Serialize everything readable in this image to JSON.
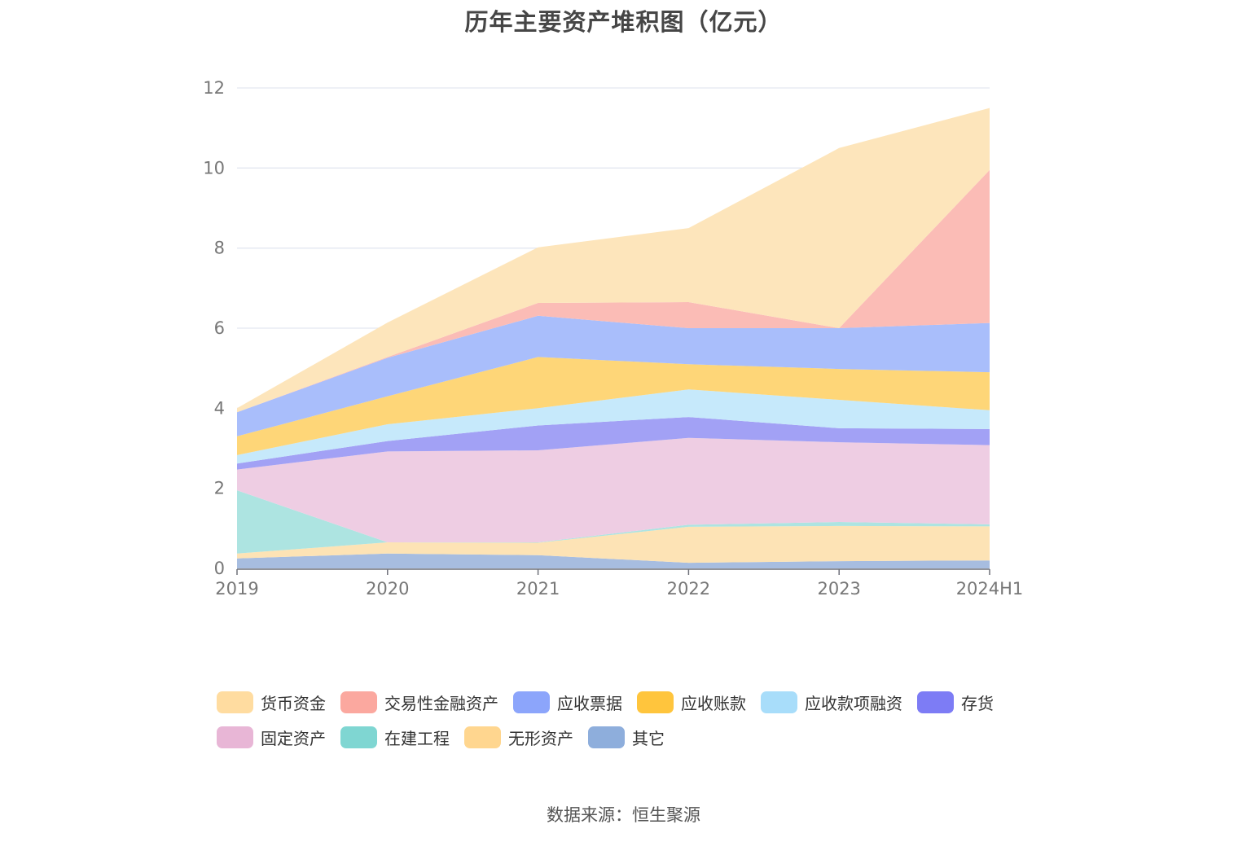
{
  "chart_data": {
    "type": "area",
    "stacked": true,
    "title": "历年主要资产堆积图（亿元）",
    "x": [
      "2019",
      "2020",
      "2021",
      "2022",
      "2023",
      "2024H1"
    ],
    "ylim": [
      0,
      12
    ],
    "yticks": [
      0,
      2,
      4,
      6,
      8,
      10,
      12
    ],
    "grid": true,
    "legend_position": "bottom",
    "series": [
      {
        "name": "其它",
        "color": "#8eaedc",
        "fill": "#a7bde0",
        "values": [
          0.25,
          0.37,
          0.33,
          0.14,
          0.18,
          0.2
        ]
      },
      {
        "name": "无形资产",
        "color": "#ffd68f",
        "fill": "#fde3b5",
        "values": [
          0.12,
          0.28,
          0.31,
          0.9,
          0.88,
          0.85
        ]
      },
      {
        "name": "在建工程",
        "color": "#7fd6d2",
        "fill": "#ade4e1",
        "values": [
          1.58,
          0.0,
          0.01,
          0.05,
          0.1,
          0.05
        ]
      },
      {
        "name": "固定资产",
        "color": "#e8b6d6",
        "fill": "#eecde3",
        "values": [
          0.52,
          2.27,
          2.3,
          2.17,
          1.99,
          1.98
        ]
      },
      {
        "name": "存货",
        "color": "#7d7cf5",
        "fill": "#a2a1f5",
        "values": [
          0.15,
          0.26,
          0.62,
          0.52,
          0.35,
          0.4
        ]
      },
      {
        "name": "应收款项融资",
        "color": "#a8ddfa",
        "fill": "#c6e9fb",
        "values": [
          0.21,
          0.42,
          0.43,
          0.69,
          0.71,
          0.47
        ]
      },
      {
        "name": "应收账款",
        "color": "#ffc53d",
        "fill": "#fed678",
        "values": [
          0.47,
          0.7,
          1.28,
          0.63,
          0.77,
          0.95
        ]
      },
      {
        "name": "应收票据",
        "color": "#8ca5fb",
        "fill": "#a9befb",
        "values": [
          0.6,
          0.96,
          1.03,
          0.9,
          1.02,
          1.23
        ]
      },
      {
        "name": "交易性金融资产",
        "color": "#fba89f",
        "fill": "#fbbcb6",
        "values": [
          0.0,
          0.02,
          0.32,
          0.65,
          0.0,
          3.82
        ]
      },
      {
        "name": "货币资金",
        "color": "#ffdca0",
        "fill": "#fde5bb",
        "values": [
          0.1,
          0.86,
          1.39,
          1.85,
          4.5,
          1.55
        ]
      }
    ]
  },
  "legend_order": [
    "货币资金",
    "交易性金融资产",
    "应收票据",
    "应收账款",
    "应收款项融资",
    "存货",
    "固定资产",
    "在建工程",
    "无形资产",
    "其它"
  ],
  "source": "数据来源：恒生聚源"
}
